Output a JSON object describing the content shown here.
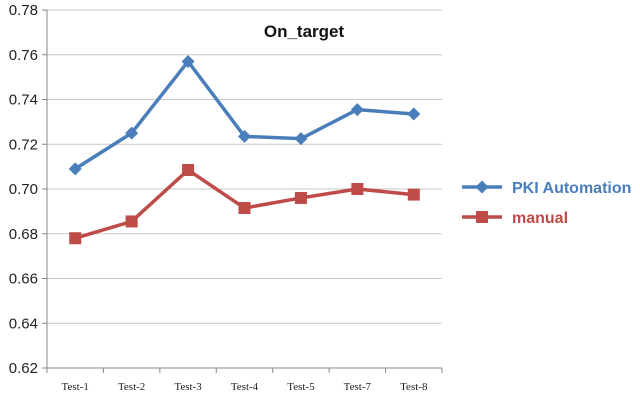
{
  "chart_data": {
    "type": "line",
    "title": "On_target",
    "xlabel": "",
    "ylabel": "",
    "categories": [
      "Test-1",
      "Test-2",
      "Test-3",
      "Test-4",
      "Test-5",
      "Test-7",
      "Test-8"
    ],
    "ylim": [
      0.62,
      0.78
    ],
    "yticks": [
      "0.62",
      "0.64",
      "0.66",
      "0.68",
      "0.70",
      "0.72",
      "0.74",
      "0.76",
      "0.78"
    ],
    "grid": "horizontal",
    "legend_position": "right",
    "series": [
      {
        "name": "PKI Automation",
        "color": "#4a7ebb",
        "marker": "diamond",
        "values": [
          0.709,
          0.725,
          0.757,
          0.7235,
          0.7225,
          0.7355,
          0.7335
        ]
      },
      {
        "name": "manual",
        "color": "#be4b48",
        "marker": "square",
        "values": [
          0.678,
          0.6855,
          0.7085,
          0.6915,
          0.696,
          0.7,
          0.6975
        ]
      }
    ]
  }
}
